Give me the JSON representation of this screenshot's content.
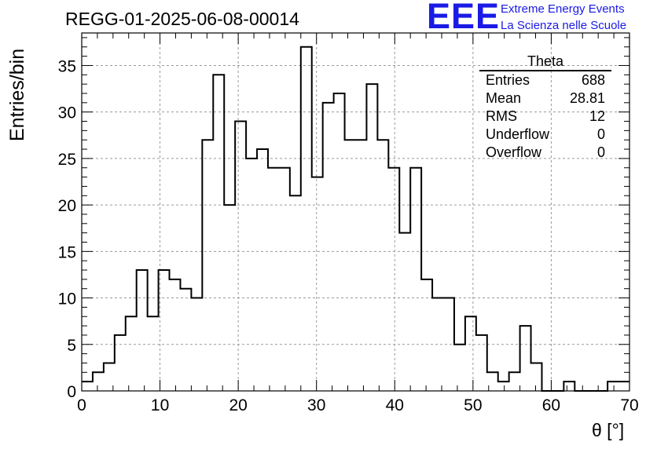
{
  "run_title": "REGG-01-2025-06-08-00014",
  "logo": {
    "mark": "EEE",
    "line1": "Extreme Energy Events",
    "line2": "La Scienza nelle Scuole",
    "color": "#1a1ae6"
  },
  "stats_box": {
    "name": "Theta",
    "rows": [
      {
        "label": "Entries",
        "value": "688"
      },
      {
        "label": "Mean",
        "value": "28.81"
      },
      {
        "label": "RMS",
        "value": "12"
      },
      {
        "label": "Underflow",
        "value": "0"
      },
      {
        "label": "Overflow",
        "value": "0"
      }
    ]
  },
  "chart_data": {
    "type": "bar",
    "style": "step-histogram",
    "title": "REGG-01-2025-06-08-00014",
    "xlabel": "θ [°]",
    "ylabel": "Entries/bin",
    "xlim": [
      0,
      70
    ],
    "ylim": [
      0,
      38.5
    ],
    "bin_width": 1.4,
    "bin_edges_start": 0,
    "values": [
      1,
      2,
      3,
      6,
      8,
      13,
      8,
      13,
      12,
      11,
      10,
      27,
      34,
      20,
      29,
      25,
      26,
      24,
      24,
      21,
      37,
      23,
      31,
      32,
      27,
      27,
      33,
      27,
      24,
      17,
      24,
      12,
      10,
      10,
      5,
      8,
      6,
      2,
      1,
      2,
      7,
      3,
      0,
      0,
      1,
      0,
      0,
      0,
      1,
      1
    ],
    "x_ticks": [
      0,
      10,
      20,
      30,
      40,
      50,
      60,
      70
    ],
    "y_ticks": [
      0,
      5,
      10,
      15,
      20,
      25,
      30,
      35
    ],
    "grid": true,
    "grid_style": "dashed",
    "line_color": "#000000"
  }
}
